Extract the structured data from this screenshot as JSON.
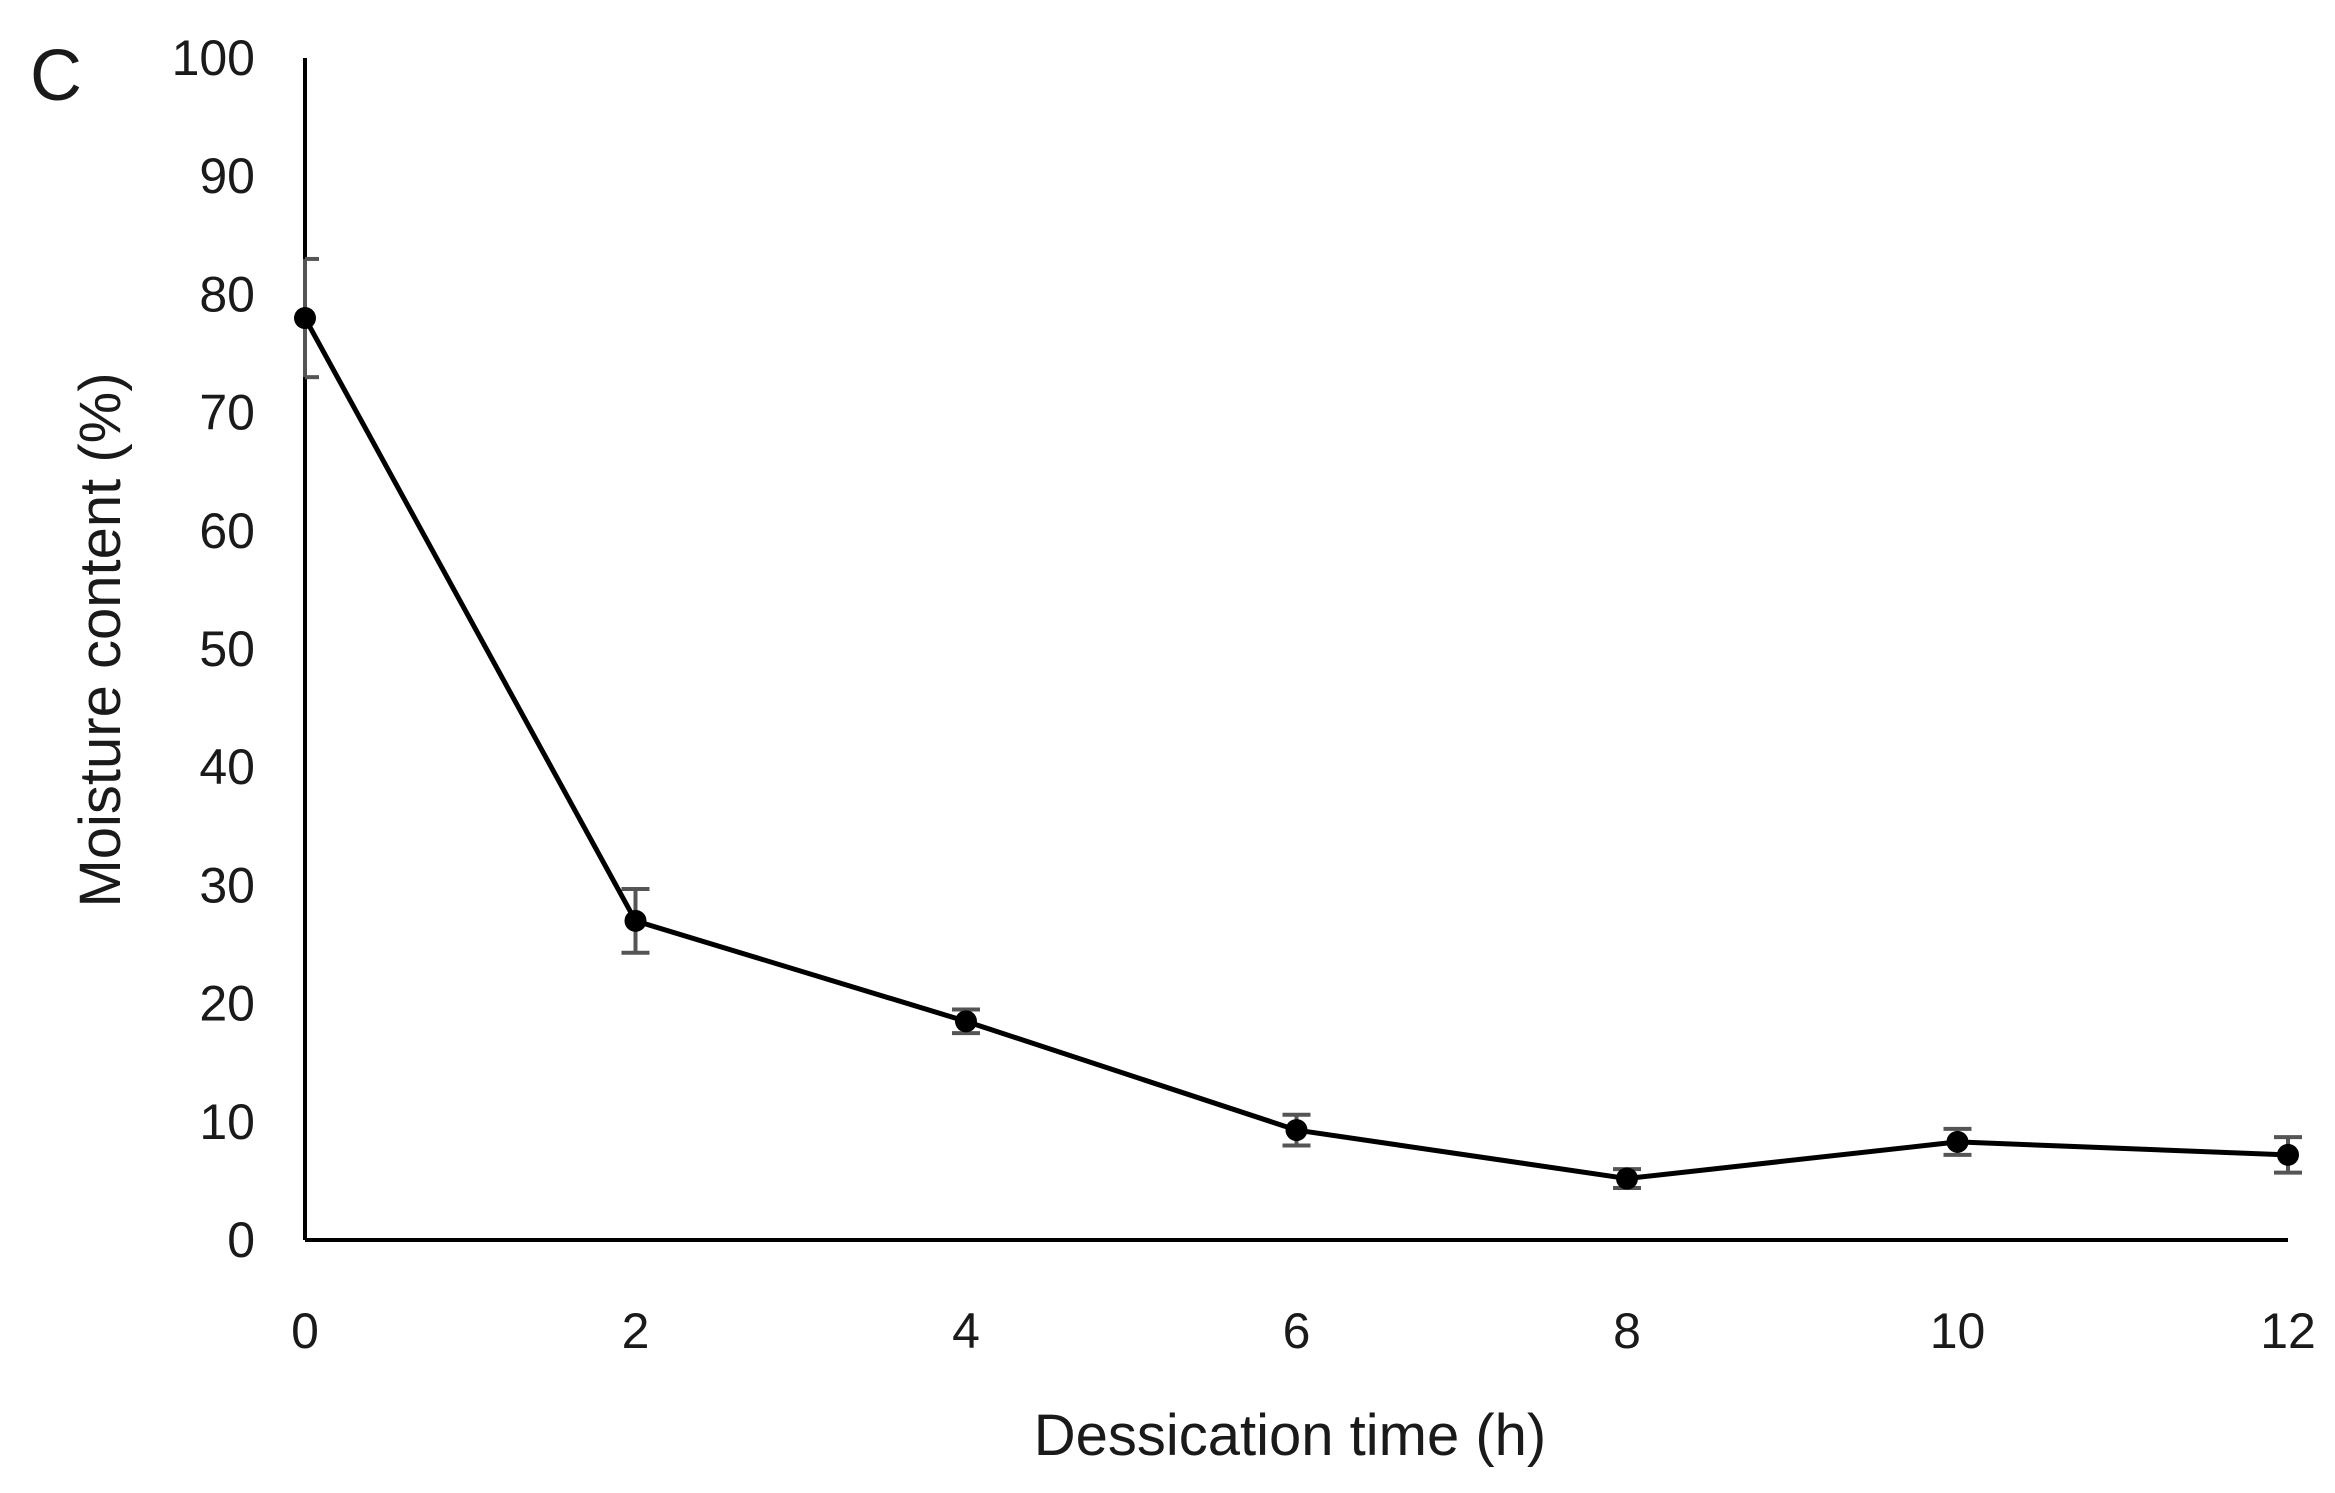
{
  "panel_label": "C",
  "chart_data": {
    "type": "line",
    "title": "",
    "xlabel": "Dessication time (h)",
    "ylabel": "Moisture content (%)",
    "xlim": [
      0,
      12
    ],
    "ylim": [
      0,
      100
    ],
    "xticks": [
      0,
      2,
      4,
      6,
      8,
      10,
      12
    ],
    "yticks": [
      0,
      10,
      20,
      30,
      40,
      50,
      60,
      70,
      80,
      90,
      100
    ],
    "grid": false,
    "legend": "none",
    "series": [
      {
        "color": "#000000",
        "marker": "circle",
        "x": [
          0,
          2,
          4,
          6,
          8,
          10,
          12
        ],
        "y": [
          78,
          27,
          18.5,
          9.3,
          5.2,
          8.3,
          7.2
        ],
        "error": [
          5,
          2.7,
          1.0,
          1.3,
          0.8,
          1.1,
          1.5
        ]
      }
    ],
    "error_bar_color": "#555555"
  }
}
